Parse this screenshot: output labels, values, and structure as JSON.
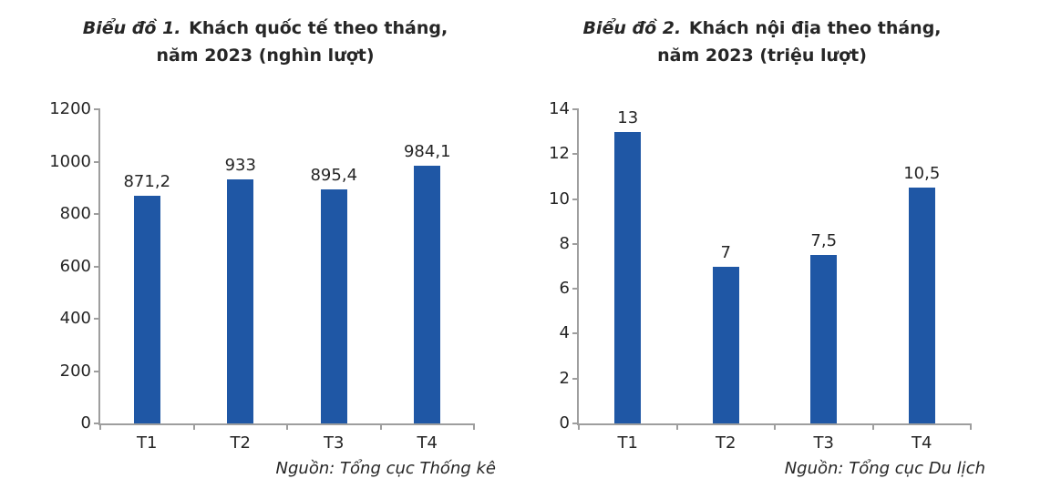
{
  "colors": {
    "bar": "#1f57a5",
    "axis": "#9e9e9e",
    "text": "#262626"
  },
  "chart_data": [
    {
      "type": "bar",
      "title": "Biểu đồ 1. Khách quốc tế theo tháng, năm 2023 (nghìn lượt)",
      "title_prefix": "Biểu đồ 1.",
      "title_line1": "Khách quốc tế theo tháng,",
      "title_line2": "năm 2023 (nghìn lượt)",
      "categories": [
        "T1",
        "T2",
        "T3",
        "T4"
      ],
      "values": [
        871.2,
        933,
        895.4,
        984.1
      ],
      "value_labels": [
        "871,2",
        "933",
        "895,4",
        "984,1"
      ],
      "xlabel": "",
      "ylabel": "",
      "ylim": [
        0,
        1200
      ],
      "yticks": [
        0,
        200,
        400,
        600,
        800,
        1000,
        1200
      ],
      "grid": false,
      "legend": false,
      "source": "Nguồn: Tổng cục Thống kê"
    },
    {
      "type": "bar",
      "title": "Biểu đồ 2. Khách nội địa theo tháng, năm 2023 (triệu lượt)",
      "title_prefix": "Biểu đồ 2.",
      "title_line1": "Khách nội địa theo tháng,",
      "title_line2": "năm 2023 (triệu lượt)",
      "categories": [
        "T1",
        "T2",
        "T3",
        "T4"
      ],
      "values": [
        13,
        7,
        7.5,
        10.5
      ],
      "value_labels": [
        "13",
        "7",
        "7,5",
        "10,5"
      ],
      "xlabel": "",
      "ylabel": "",
      "ylim": [
        0,
        14
      ],
      "yticks": [
        0,
        2,
        4,
        6,
        8,
        10,
        12,
        14
      ],
      "grid": false,
      "legend": false,
      "source": "Nguồn: Tổng cục Du lịch"
    }
  ]
}
